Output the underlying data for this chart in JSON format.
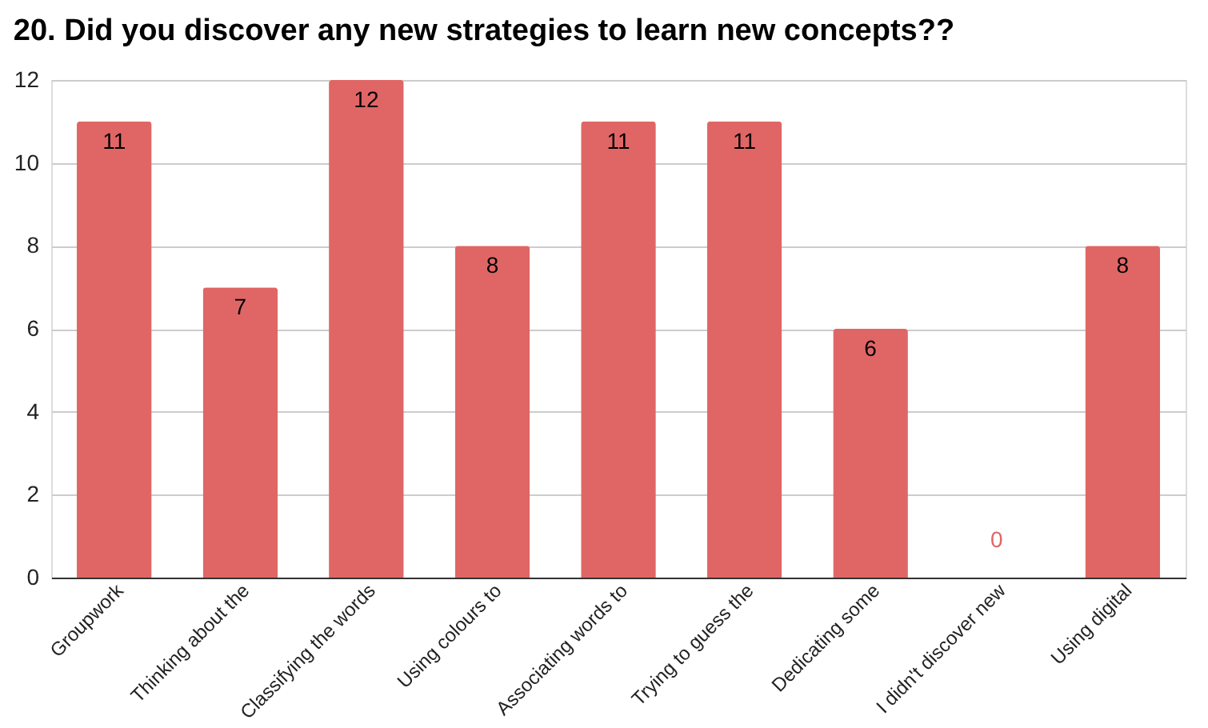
{
  "chart_data": {
    "type": "bar",
    "title": "20. Did you discover any new strategies to learn new concepts??",
    "categories": [
      "Groupwork",
      "Thinking about the",
      "Classifying the words",
      "Using colours to",
      "Associating words to",
      "Trying to guess the",
      "Dedicating some",
      "I didn't discover new",
      "Using digital"
    ],
    "values": [
      11,
      7,
      12,
      8,
      11,
      11,
      6,
      0,
      8
    ],
    "color": "#e06666",
    "ylim": [
      0,
      12
    ],
    "yticks": [
      0,
      2,
      4,
      6,
      8,
      10,
      12
    ],
    "grid": "y",
    "data_labels": true
  }
}
